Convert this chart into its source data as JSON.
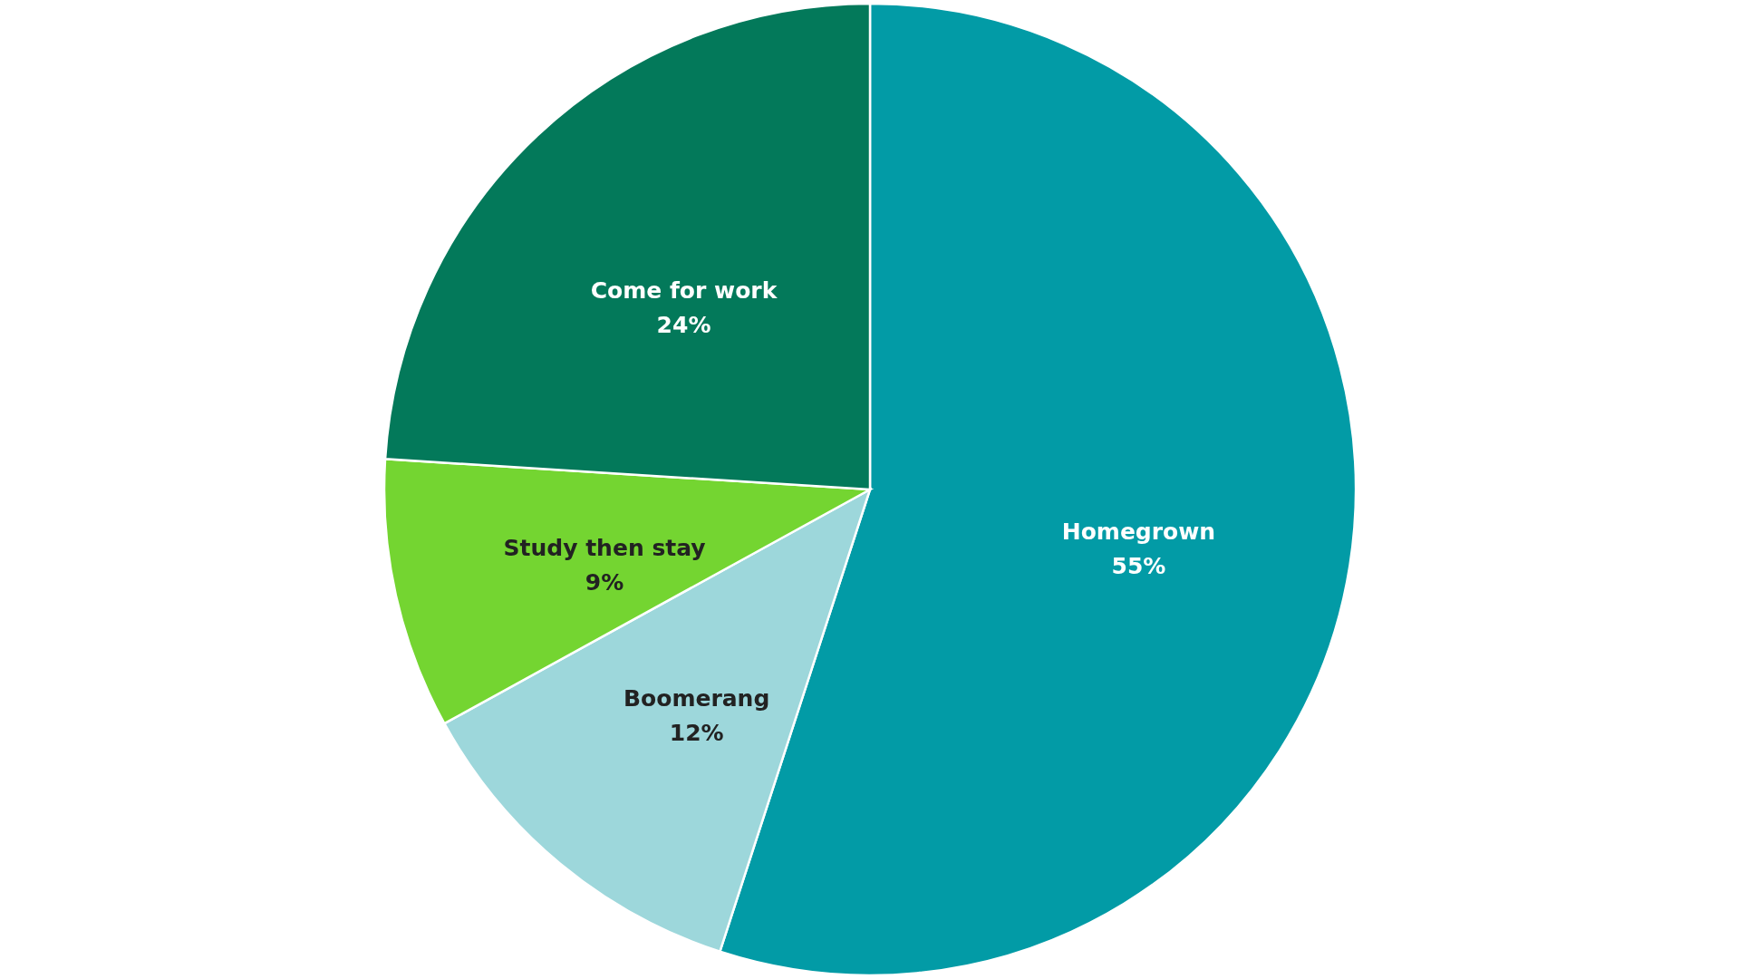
{
  "chart_data": {
    "type": "pie",
    "categories": [
      "Homegrown",
      "Boomerang",
      "Study then stay",
      "Come for work"
    ],
    "values": [
      55,
      12,
      9,
      24
    ],
    "colors": [
      "#029ba6",
      "#9dd7db",
      "#74d531",
      "#03795a"
    ],
    "value_labels": [
      "55%",
      "12%",
      "9%",
      "24%"
    ]
  }
}
